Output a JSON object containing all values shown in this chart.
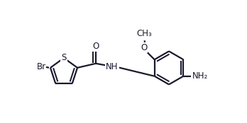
{
  "bg_color": "#ffffff",
  "line_color": "#1a1a2e",
  "line_width": 1.6,
  "font_size": 8.5,
  "figsize": [
    3.48,
    1.74
  ],
  "dpi": 100,
  "xlim": [
    0,
    3.48
  ],
  "ylim": [
    0,
    1.74
  ]
}
